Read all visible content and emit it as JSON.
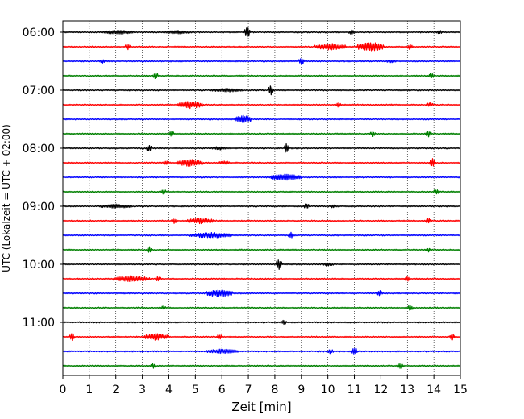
{
  "chart_data": {
    "type": "line",
    "subtype": "helicorder",
    "xlabel": "Zeit  [min]",
    "ylabel": "UTC (Lokalzeit = UTC + 02:00)",
    "xlim": [
      0,
      15
    ],
    "x_ticks": [
      0,
      1,
      2,
      3,
      4,
      5,
      6,
      7,
      8,
      9,
      10,
      11,
      12,
      13,
      14,
      15
    ],
    "x_tick_labels": [
      "0",
      "1",
      "2",
      "3",
      "4",
      "5",
      "6",
      "7",
      "8",
      "9",
      "10",
      "11",
      "12",
      "13",
      "14",
      "15"
    ],
    "y_tick_labels": [
      "06:00",
      "07:00",
      "08:00",
      "09:00",
      "10:00",
      "11:00"
    ],
    "row_interval_min": 15,
    "row_count": 24,
    "start_time": "06:00",
    "end_time": "12:00",
    "vertical_grid": "dotted",
    "color_cycle": [
      "#000000",
      "#ff0000",
      "#0000ff",
      "#008000"
    ],
    "rows": [
      {
        "start": "06:00",
        "color": "#000000",
        "events": [
          [
            2.1,
            0.35,
            0.6
          ],
          [
            4.3,
            0.3,
            0.5
          ],
          [
            6.95,
            1.0,
            0.1
          ],
          [
            10.9,
            0.45,
            0.1
          ],
          [
            14.2,
            0.35,
            0.1
          ]
        ]
      },
      {
        "start": "06:15",
        "color": "#ff0000",
        "events": [
          [
            2.45,
            0.55,
            0.1
          ],
          [
            10.1,
            0.55,
            0.6
          ],
          [
            11.6,
            0.8,
            0.5
          ],
          [
            13.1,
            0.5,
            0.1
          ]
        ]
      },
      {
        "start": "06:30",
        "color": "#0000ff",
        "events": [
          [
            1.5,
            0.3,
            0.1
          ],
          [
            9.0,
            0.6,
            0.1
          ],
          [
            12.4,
            0.3,
            0.2
          ]
        ]
      },
      {
        "start": "06:45",
        "color": "#008000",
        "events": [
          [
            3.5,
            0.6,
            0.1
          ],
          [
            13.9,
            0.5,
            0.1
          ]
        ]
      },
      {
        "start": "07:00",
        "color": "#000000",
        "events": [
          [
            6.2,
            0.3,
            0.6
          ],
          [
            7.85,
            0.8,
            0.1
          ]
        ]
      },
      {
        "start": "07:15",
        "color": "#ff0000",
        "events": [
          [
            4.8,
            0.6,
            0.5
          ],
          [
            10.4,
            0.4,
            0.1
          ],
          [
            13.85,
            0.45,
            0.1
          ]
        ]
      },
      {
        "start": "07:30",
        "color": "#0000ff",
        "events": [
          [
            6.8,
            0.7,
            0.3
          ]
        ]
      },
      {
        "start": "07:45",
        "color": "#008000",
        "events": [
          [
            4.1,
            0.5,
            0.1
          ],
          [
            11.7,
            0.45,
            0.1
          ],
          [
            13.8,
            0.5,
            0.1
          ]
        ]
      },
      {
        "start": "08:00",
        "color": "#000000",
        "events": [
          [
            3.25,
            0.55,
            0.1
          ],
          [
            5.9,
            0.3,
            0.3
          ],
          [
            8.45,
            0.85,
            0.1
          ]
        ]
      },
      {
        "start": "08:15",
        "color": "#ff0000",
        "events": [
          [
            3.9,
            0.4,
            0.1
          ],
          [
            4.8,
            0.6,
            0.5
          ],
          [
            6.1,
            0.35,
            0.2
          ],
          [
            13.95,
            0.7,
            0.1
          ]
        ]
      },
      {
        "start": "08:30",
        "color": "#0000ff",
        "events": [
          [
            8.4,
            0.55,
            0.6
          ]
        ]
      },
      {
        "start": "08:45",
        "color": "#008000",
        "events": [
          [
            3.8,
            0.5,
            0.1
          ],
          [
            14.1,
            0.55,
            0.1
          ]
        ]
      },
      {
        "start": "09:00",
        "color": "#000000",
        "events": [
          [
            2.0,
            0.35,
            0.6
          ],
          [
            9.2,
            0.6,
            0.1
          ],
          [
            10.2,
            0.35,
            0.1
          ]
        ]
      },
      {
        "start": "09:15",
        "color": "#ff0000",
        "events": [
          [
            4.2,
            0.45,
            0.1
          ],
          [
            5.2,
            0.5,
            0.5
          ],
          [
            13.8,
            0.45,
            0.1
          ]
        ]
      },
      {
        "start": "09:30",
        "color": "#0000ff",
        "events": [
          [
            5.6,
            0.45,
            0.8
          ],
          [
            8.6,
            0.5,
            0.1
          ]
        ]
      },
      {
        "start": "09:45",
        "color": "#008000",
        "events": [
          [
            3.25,
            0.55,
            0.1
          ],
          [
            13.8,
            0.4,
            0.1
          ]
        ]
      },
      {
        "start": "10:00",
        "color": "#000000",
        "events": [
          [
            8.15,
            0.9,
            0.1
          ],
          [
            10.0,
            0.3,
            0.2
          ]
        ]
      },
      {
        "start": "10:15",
        "color": "#ff0000",
        "events": [
          [
            2.6,
            0.5,
            0.7
          ],
          [
            3.6,
            0.45,
            0.1
          ],
          [
            13.0,
            0.4,
            0.1
          ]
        ]
      },
      {
        "start": "10:30",
        "color": "#0000ff",
        "events": [
          [
            5.9,
            0.6,
            0.5
          ],
          [
            11.95,
            0.5,
            0.1
          ]
        ]
      },
      {
        "start": "10:45",
        "color": "#008000",
        "events": [
          [
            3.8,
            0.35,
            0.1
          ],
          [
            13.1,
            0.55,
            0.1
          ]
        ]
      },
      {
        "start": "11:00",
        "color": "#000000",
        "events": [
          [
            8.35,
            0.4,
            0.1
          ]
        ]
      },
      {
        "start": "11:15",
        "color": "#ff0000",
        "events": [
          [
            0.35,
            0.6,
            0.1
          ],
          [
            3.5,
            0.55,
            0.5
          ],
          [
            5.9,
            0.5,
            0.1
          ],
          [
            14.7,
            0.5,
            0.1
          ]
        ]
      },
      {
        "start": "11:30",
        "color": "#0000ff",
        "events": [
          [
            6.0,
            0.4,
            0.6
          ],
          [
            10.1,
            0.4,
            0.1
          ],
          [
            11.0,
            0.7,
            0.1
          ]
        ]
      },
      {
        "start": "11:45",
        "color": "#008000",
        "events": [
          [
            3.4,
            0.45,
            0.1
          ],
          [
            12.75,
            0.5,
            0.1
          ]
        ]
      }
    ]
  }
}
